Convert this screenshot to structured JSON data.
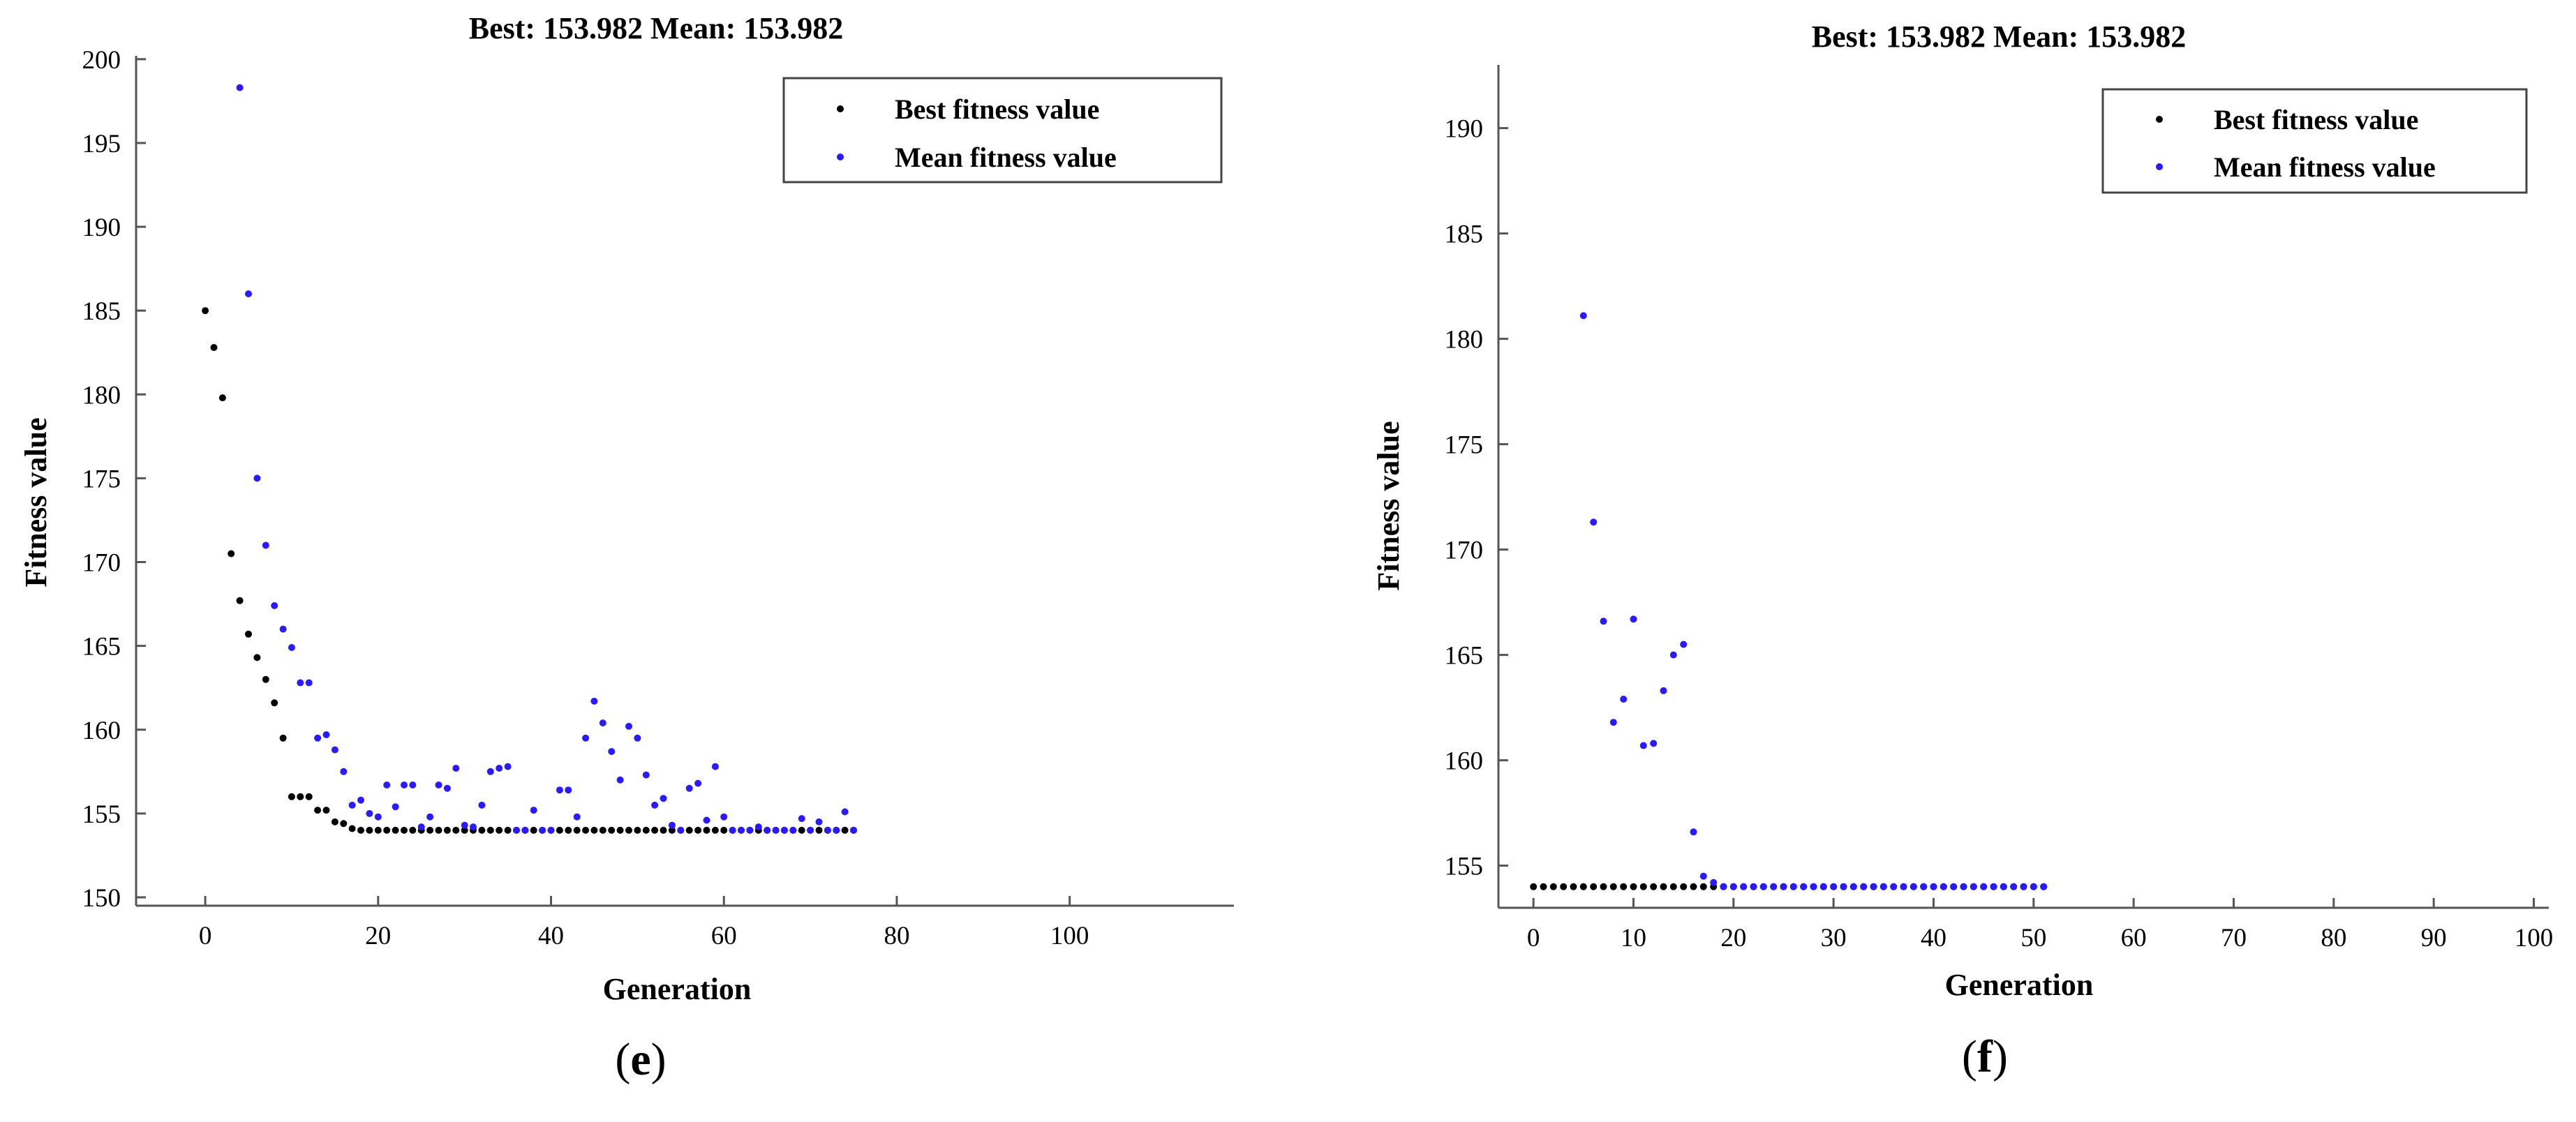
{
  "colors": {
    "best": "#000000",
    "mean": "#2a1aff"
  },
  "panels": [
    {
      "label_open": "(",
      "label_letter": "e",
      "label_close": ")"
    },
    {
      "label_open": "(",
      "label_letter": "f",
      "label_close": ")"
    }
  ],
  "chart_data": [
    {
      "type": "scatter",
      "title": "Best: 153.982 Mean: 153.982",
      "xlabel": "Generation",
      "ylabel": "Fitness value",
      "xlim": [
        -8,
        119
      ],
      "ylim": [
        149.5,
        200.2
      ],
      "xticks": [
        0,
        20,
        40,
        60,
        80,
        100
      ],
      "yticks": [
        150,
        155,
        160,
        165,
        170,
        175,
        180,
        185,
        190,
        195,
        200
      ],
      "grid": false,
      "legend_position": "top-right",
      "series": [
        {
          "name": "Best fitness value",
          "color": "#000000",
          "x": [
            0,
            1,
            2,
            3,
            4,
            5,
            6,
            7,
            8,
            9,
            10,
            11,
            12,
            13,
            14,
            15,
            16,
            17,
            18,
            19,
            20,
            21,
            22,
            23,
            24,
            25,
            26,
            27,
            28,
            29,
            30,
            31,
            32,
            33,
            34,
            35,
            36,
            37,
            38,
            39,
            40,
            41,
            42,
            43,
            44,
            45,
            46,
            47,
            48,
            49,
            50,
            51,
            52,
            53,
            54,
            55,
            56,
            57,
            58,
            59,
            60,
            61,
            62,
            63,
            64,
            65,
            66,
            67,
            68,
            69,
            70,
            71,
            72,
            73,
            74,
            75
          ],
          "y": [
            185.0,
            182.8,
            179.8,
            170.5,
            167.7,
            165.7,
            164.3,
            163.0,
            161.6,
            159.5,
            156.0,
            156.0,
            156.0,
            155.2,
            155.2,
            154.5,
            154.4,
            154.1,
            154.0,
            154.0,
            154.0,
            154.0,
            154.0,
            154.0,
            154.0,
            154.0,
            154.0,
            154.0,
            154.0,
            154.0,
            154.0,
            154.0,
            154.0,
            154.0,
            154.0,
            154.0,
            154.0,
            154.0,
            154.0,
            154.0,
            154.0,
            154.0,
            154.0,
            154.0,
            154.0,
            154.0,
            154.0,
            154.0,
            154.0,
            154.0,
            154.0,
            154.0,
            154.0,
            154.0,
            154.0,
            154.0,
            154.0,
            154.0,
            154.0,
            154.0,
            154.0,
            154.0,
            154.0,
            154.0,
            154.0,
            154.0,
            154.0,
            154.0,
            154.0,
            154.0,
            154.0,
            154.0,
            154.0,
            154.0,
            154.0,
            154.0
          ]
        },
        {
          "name": "Mean fitness value",
          "color": "#2a1aff",
          "x": [
            4,
            5,
            6,
            7,
            8,
            9,
            10,
            11,
            12,
            13,
            14,
            15,
            16,
            17,
            18,
            19,
            20,
            21,
            22,
            23,
            24,
            25,
            26,
            27,
            28,
            29,
            30,
            31,
            32,
            33,
            34,
            35,
            36,
            37,
            38,
            39,
            40,
            41,
            42,
            43,
            44,
            45,
            46,
            47,
            48,
            49,
            50,
            51,
            52,
            53,
            54,
            55,
            56,
            57,
            58,
            59,
            60,
            61,
            62,
            63,
            64,
            65,
            66,
            67,
            68,
            69,
            70,
            71,
            72,
            73,
            74,
            75
          ],
          "y": [
            198.3,
            186.0,
            175.0,
            171.0,
            167.4,
            166.0,
            164.9,
            162.8,
            162.8,
            159.5,
            159.7,
            158.8,
            157.5,
            155.5,
            155.8,
            155.0,
            154.8,
            156.7,
            155.4,
            156.7,
            156.7,
            154.2,
            154.8,
            156.7,
            156.5,
            157.7,
            154.3,
            154.2,
            155.5,
            157.5,
            157.7,
            157.8,
            154.0,
            154.0,
            155.2,
            154.0,
            154.0,
            156.4,
            156.4,
            154.8,
            159.5,
            161.7,
            160.4,
            158.7,
            157.0,
            160.2,
            159.5,
            157.3,
            155.5,
            155.9,
            154.3,
            154.0,
            156.5,
            156.8,
            154.6,
            157.8,
            154.8,
            154.0,
            154.0,
            154.0,
            154.2,
            154.0,
            154.0,
            154.0,
            154.0,
            154.7,
            154.0,
            154.5,
            154.0,
            154.0,
            155.1,
            154.0
          ]
        }
      ]
    },
    {
      "type": "scatter",
      "title": "Best: 153.982 Mean: 153.982",
      "xlabel": "Generation",
      "ylabel": "Fitness value",
      "xlim": [
        -3.5,
        101.5
      ],
      "ylim": [
        153.0,
        193.0
      ],
      "xticks": [
        0,
        10,
        20,
        30,
        40,
        50,
        60,
        70,
        80,
        90,
        100
      ],
      "yticks": [
        155,
        160,
        165,
        170,
        175,
        180,
        185,
        190
      ],
      "grid": false,
      "legend_position": "top-right",
      "series": [
        {
          "name": "Best fitness value",
          "color": "#000000",
          "x": [
            0,
            1,
            2,
            3,
            4,
            5,
            6,
            7,
            8,
            9,
            10,
            11,
            12,
            13,
            14,
            15,
            16,
            17,
            18,
            19,
            20,
            21,
            22,
            23,
            24,
            25,
            26,
            27,
            28,
            29,
            30,
            31,
            32,
            33,
            34,
            35,
            36,
            37,
            38,
            39,
            40,
            41,
            42,
            43,
            44,
            45,
            46,
            47,
            48,
            49,
            50,
            51
          ],
          "y": [
            154.0,
            154.0,
            154.0,
            154.0,
            154.0,
            154.0,
            154.0,
            154.0,
            154.0,
            154.0,
            154.0,
            154.0,
            154.0,
            154.0,
            154.0,
            154.0,
            154.0,
            154.0,
            154.0,
            154.0,
            154.0,
            154.0,
            154.0,
            154.0,
            154.0,
            154.0,
            154.0,
            154.0,
            154.0,
            154.0,
            154.0,
            154.0,
            154.0,
            154.0,
            154.0,
            154.0,
            154.0,
            154.0,
            154.0,
            154.0,
            154.0,
            154.0,
            154.0,
            154.0,
            154.0,
            154.0,
            154.0,
            154.0,
            154.0,
            154.0,
            154.0,
            154.0
          ]
        },
        {
          "name": "Mean fitness value",
          "color": "#2a1aff",
          "x": [
            5,
            6,
            7,
            8,
            9,
            10,
            11,
            12,
            13,
            14,
            15,
            16,
            17,
            18,
            19,
            20,
            21,
            22,
            23,
            24,
            25,
            26,
            27,
            28,
            29,
            30,
            31,
            32,
            33,
            34,
            35,
            36,
            37,
            38,
            39,
            40,
            41,
            42,
            43,
            44,
            45,
            46,
            47,
            48,
            49,
            50,
            51
          ],
          "y": [
            181.1,
            171.3,
            166.6,
            161.8,
            162.9,
            166.7,
            160.7,
            160.8,
            163.3,
            165.0,
            165.5,
            156.6,
            154.5,
            154.2,
            154.0,
            154.0,
            154.0,
            154.0,
            154.0,
            154.0,
            154.0,
            154.0,
            154.0,
            154.0,
            154.0,
            154.0,
            154.0,
            154.0,
            154.0,
            154.0,
            154.0,
            154.0,
            154.0,
            154.0,
            154.0,
            154.0,
            154.0,
            154.0,
            154.0,
            154.0,
            154.0,
            154.0,
            154.0,
            154.0,
            154.0,
            154.0,
            154.0
          ]
        }
      ]
    }
  ]
}
